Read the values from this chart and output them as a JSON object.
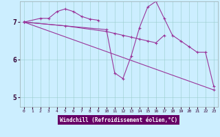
{
  "xlabel": "Windchill (Refroidissement éolien,°C)",
  "background_color": "#cceeff",
  "plot_bg_color": "#cceeff",
  "xlabel_bg": "#660066",
  "xlabel_fg": "#ffffff",
  "line_color": "#993399",
  "xlim": [
    -0.5,
    23.5
  ],
  "ylim": [
    4.75,
    7.55
  ],
  "yticks": [
    5,
    6,
    7
  ],
  "xticks": [
    0,
    1,
    2,
    3,
    4,
    5,
    6,
    7,
    8,
    9,
    10,
    11,
    12,
    13,
    14,
    15,
    16,
    17,
    18,
    19,
    20,
    21,
    22,
    23
  ],
  "series": [
    {
      "x": [
        0,
        2,
        3,
        4,
        5,
        6,
        7,
        8,
        9
      ],
      "y": [
        7.0,
        7.1,
        7.1,
        7.28,
        7.35,
        7.28,
        7.15,
        7.08,
        7.05
      ]
    },
    {
      "x": [
        0,
        5,
        10,
        11,
        12,
        13,
        14,
        15,
        16,
        17
      ],
      "y": [
        7.0,
        6.9,
        6.75,
        6.7,
        6.65,
        6.6,
        6.55,
        6.5,
        6.45,
        6.65
      ]
    },
    {
      "x": [
        0,
        10,
        11,
        12,
        13,
        14,
        15,
        16,
        17,
        18,
        19,
        20,
        21,
        22,
        23
      ],
      "y": [
        7.0,
        6.8,
        5.65,
        5.5,
        6.1,
        6.85,
        7.4,
        7.55,
        7.1,
        6.65,
        6.5,
        6.35,
        6.2,
        6.2,
        5.3
      ]
    },
    {
      "x": [
        0,
        23
      ],
      "y": [
        7.0,
        5.2
      ]
    }
  ]
}
